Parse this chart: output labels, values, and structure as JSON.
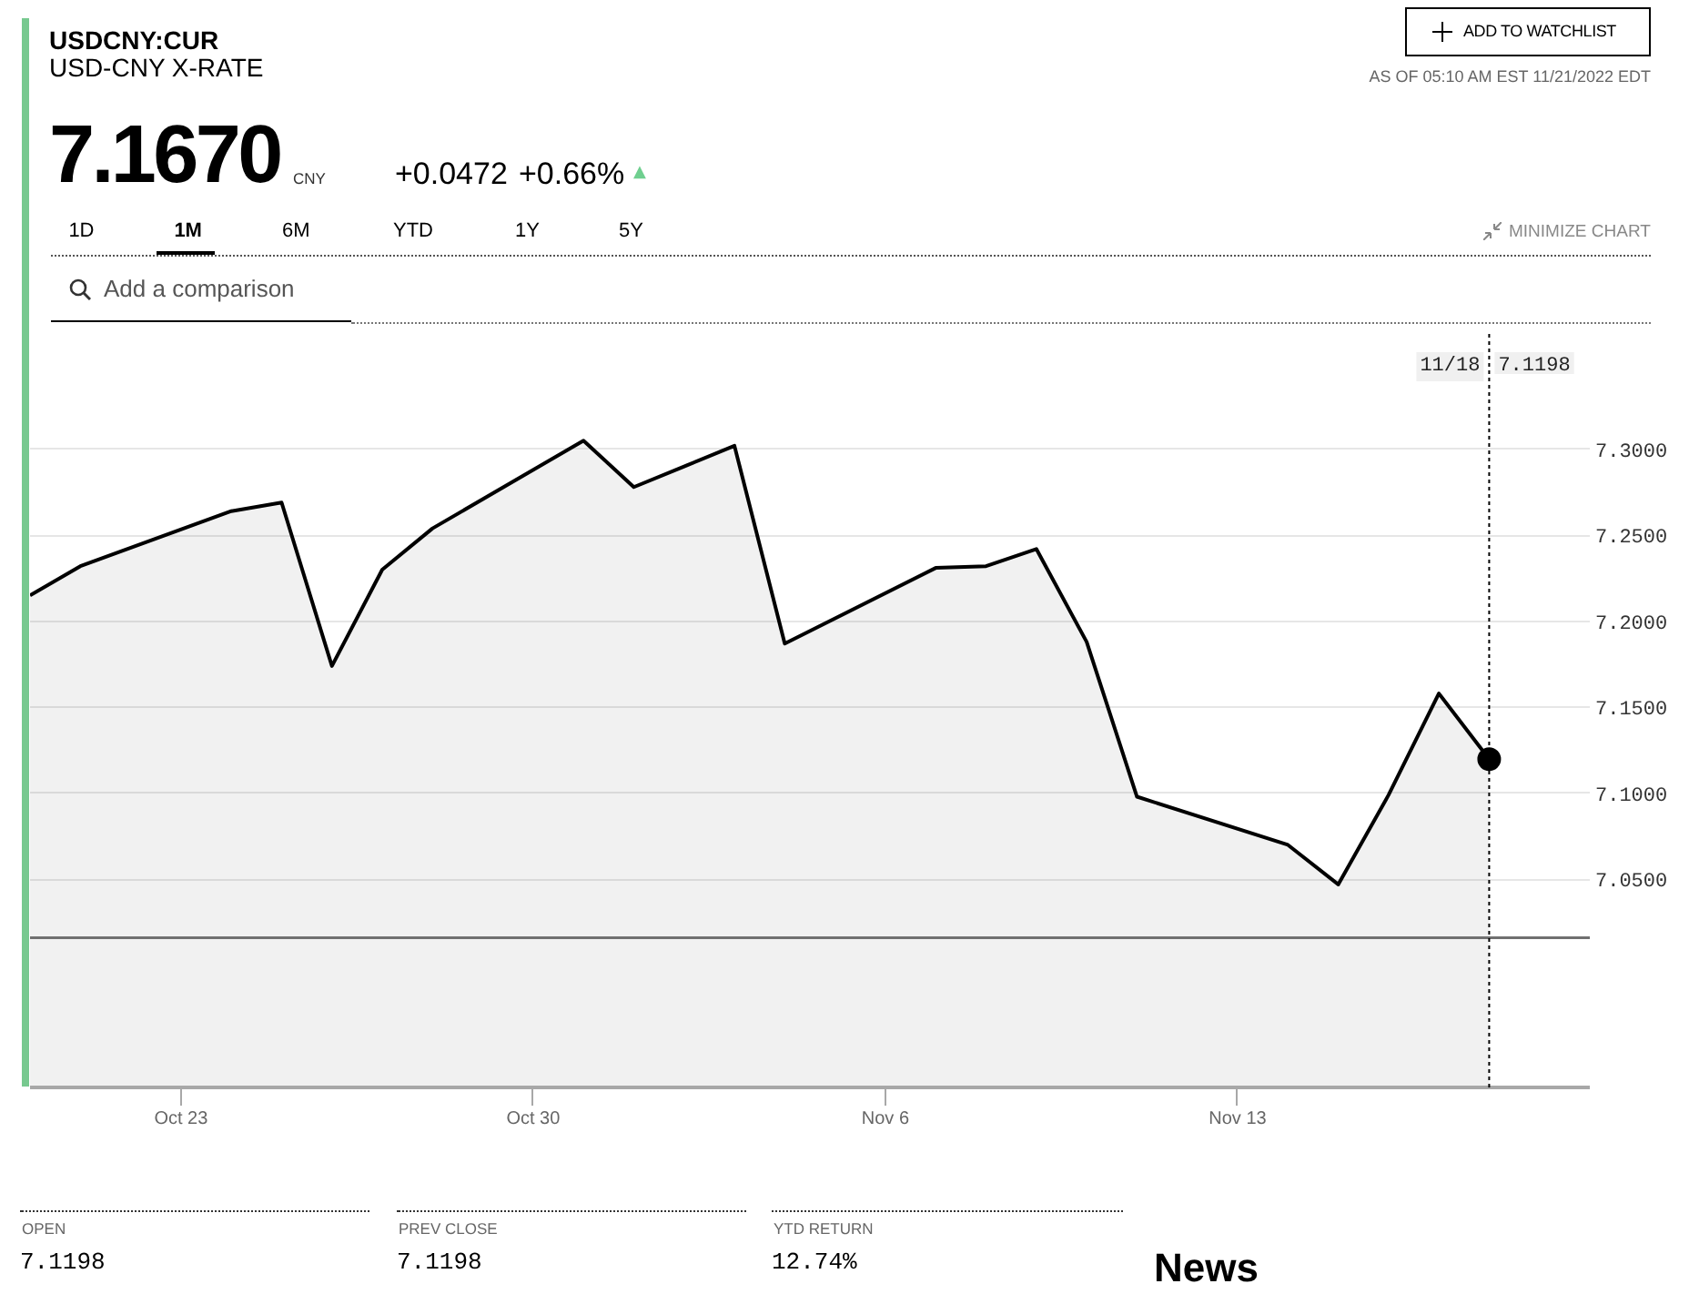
{
  "chart_data": {
    "type": "area",
    "title": "USDCNY:CUR",
    "subtitle": "USD-CNY X-RATE",
    "x": [
      "2022-10-20",
      "2022-10-21",
      "2022-10-24",
      "2022-10-25",
      "2022-10-26",
      "2022-10-27",
      "2022-10-28",
      "2022-10-31",
      "2022-11-01",
      "2022-11-02",
      "2022-11-03",
      "2022-11-04",
      "2022-11-07",
      "2022-11-08",
      "2022-11-09",
      "2022-11-10",
      "2022-11-11",
      "2022-11-14",
      "2022-11-15",
      "2022-11-16",
      "2022-11-17",
      "2022-11-18"
    ],
    "series": [
      {
        "color": "#000000",
        "values": [
          7.215,
          7.232,
          7.264,
          7.269,
          7.174,
          7.23,
          7.254,
          7.305,
          7.278,
          7.29,
          7.302,
          7.187,
          7.231,
          7.232,
          7.242,
          7.188,
          7.098,
          7.07,
          7.047,
          7.099,
          7.158,
          7.1198
        ]
      },
      {
        "type": "scatter",
        "marker": "circle",
        "color": "#000000",
        "x": [
          "2022-11-18"
        ],
        "values": [
          7.1198
        ]
      }
    ],
    "xlim": [
      "2022-10-20",
      "2022-11-20"
    ],
    "xticks": [
      {
        "value": "2022-10-23",
        "label": "Oct 23"
      },
      {
        "value": "2022-10-30",
        "label": "Oct 30"
      },
      {
        "value": "2022-11-06",
        "label": "Nov 6"
      },
      {
        "value": "2022-11-13",
        "label": "Nov 13"
      }
    ],
    "ylim": [
      6.929,
      7.367
    ],
    "yticks": [
      {
        "value": 7.05,
        "label": "7.0500"
      },
      {
        "value": 7.1,
        "label": "7.1000"
      },
      {
        "value": 7.15,
        "label": "7.1500"
      },
      {
        "value": 7.2,
        "label": "7.2000"
      },
      {
        "value": 7.25,
        "label": "7.2500"
      },
      {
        "value": 7.3,
        "label": "7.3000"
      }
    ],
    "grid": "y",
    "ref_lines": [
      {
        "axis": "y",
        "value": 7.016,
        "color": "#707070"
      },
      {
        "axis": "x",
        "value": "2022-11-18",
        "label": "11/18",
        "color": "#000000",
        "line_style": "dotted"
      }
    ],
    "annotations": [
      "ADD TO WATCHLIST",
      "AS OF 05:10 AM EST 11/21/2022 EDT",
      "7.1670",
      "CNY",
      "+0.0472",
      "+0.66%",
      "▲",
      "1D",
      "1M",
      "6M",
      "YTD",
      "1Y",
      "5Y",
      "MINIMIZE CHART",
      "Add a comparison",
      "7.1198",
      "OPEN",
      "7.1198",
      "PREV CLOSE",
      "7.1198",
      "YTD RETURN",
      "12.74%",
      "News"
    ]
  }
}
